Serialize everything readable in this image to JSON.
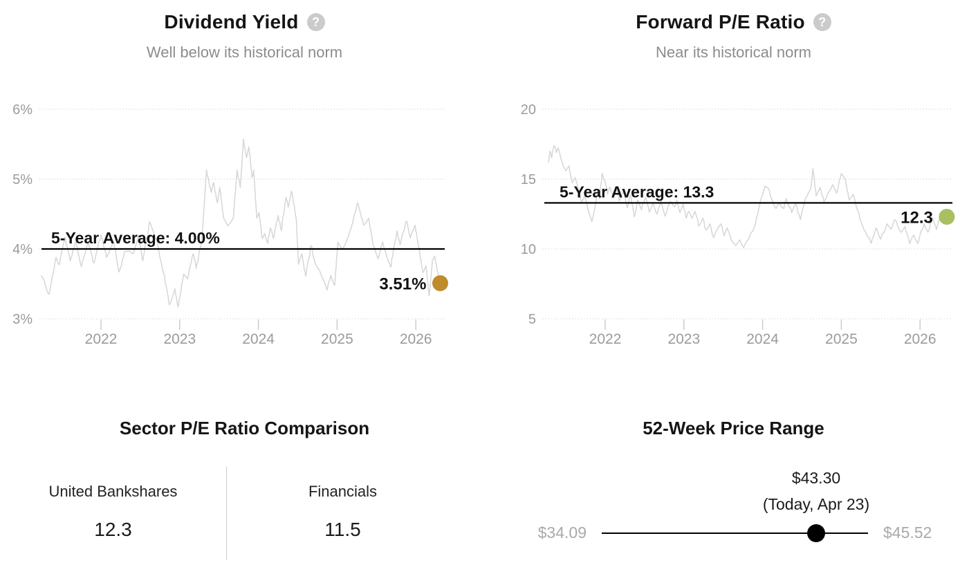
{
  "icons": {
    "help_glyph": "?"
  },
  "colors": {
    "title": "#151515",
    "subtitle": "#8c8c8c",
    "axis_text": "#9b9b9b",
    "grid": "#dcdcdc",
    "tick": "#c9c9c9",
    "series_line": "#d6d6d6",
    "average_line": "#000000",
    "gold_dot": "#bf8b2c",
    "green_dot": "#a8c05f",
    "range_label": "#a9a9a9",
    "slider": "#000000",
    "divider": "#cccccc"
  },
  "chart_data": [
    {
      "type": "line",
      "title": "Dividend Yield",
      "subtitle": "Well below its historical norm",
      "xlabel": "",
      "ylabel": "",
      "xlim": [
        2021.2,
        2026.45
      ],
      "ylim": [
        3,
        6
      ],
      "grid": "dotted-horizontal",
      "x_ticks": [
        2022,
        2023,
        2024,
        2025,
        2026
      ],
      "x_tick_labels": [
        "2022",
        "2023",
        "2024",
        "2025",
        "2026"
      ],
      "y_ticks": [
        3,
        4,
        5,
        6
      ],
      "y_tick_labels": [
        "3%",
        "4%",
        "5%",
        "6%"
      ],
      "average_value": 4.0,
      "average_label": "5-Year Average: 4.00%",
      "current_x": 2026.31,
      "current_value": 3.51,
      "current_label": "3.51%",
      "line_color": "#d6d6d6",
      "dot_color": "#bf8b2c",
      "series": [
        {
          "name": "Dividend Yield %",
          "points": [
            [
              2021.24,
              3.62
            ],
            [
              2021.3,
              3.46
            ],
            [
              2021.34,
              3.35
            ],
            [
              2021.43,
              3.88
            ],
            [
              2021.47,
              3.77
            ],
            [
              2021.54,
              4.17
            ],
            [
              2021.61,
              3.83
            ],
            [
              2021.68,
              4.12
            ],
            [
              2021.75,
              3.75
            ],
            [
              2021.84,
              4.09
            ],
            [
              2021.91,
              3.8
            ],
            [
              2022.0,
              4.2
            ],
            [
              2022.07,
              3.88
            ],
            [
              2022.16,
              4.12
            ],
            [
              2022.23,
              3.67
            ],
            [
              2022.3,
              3.96
            ],
            [
              2022.41,
              3.93
            ],
            [
              2022.48,
              4.2
            ],
            [
              2022.53,
              3.83
            ],
            [
              2022.62,
              4.39
            ],
            [
              2022.71,
              4.12
            ],
            [
              2022.76,
              3.83
            ],
            [
              2022.8,
              3.64
            ],
            [
              2022.87,
              3.2
            ],
            [
              2022.94,
              3.43
            ],
            [
              2022.98,
              3.17
            ],
            [
              2023.05,
              3.64
            ],
            [
              2023.1,
              3.57
            ],
            [
              2023.17,
              3.93
            ],
            [
              2023.21,
              3.72
            ],
            [
              2023.28,
              4.12
            ],
            [
              2023.31,
              4.6
            ],
            [
              2023.34,
              5.13
            ],
            [
              2023.4,
              4.81
            ],
            [
              2023.43,
              4.95
            ],
            [
              2023.48,
              4.66
            ],
            [
              2023.51,
              4.88
            ],
            [
              2023.56,
              4.44
            ],
            [
              2023.61,
              4.33
            ],
            [
              2023.68,
              4.44
            ],
            [
              2023.73,
              5.13
            ],
            [
              2023.77,
              4.88
            ],
            [
              2023.81,
              5.57
            ],
            [
              2023.85,
              5.31
            ],
            [
              2023.88,
              5.46
            ],
            [
              2023.92,
              5.02
            ],
            [
              2023.94,
              5.13
            ],
            [
              2023.98,
              4.44
            ],
            [
              2024.01,
              4.52
            ],
            [
              2024.05,
              4.15
            ],
            [
              2024.08,
              4.22
            ],
            [
              2024.12,
              4.08
            ],
            [
              2024.15,
              4.3
            ],
            [
              2024.19,
              4.15
            ],
            [
              2024.25,
              4.48
            ],
            [
              2024.29,
              4.26
            ],
            [
              2024.35,
              4.74
            ],
            [
              2024.38,
              4.6
            ],
            [
              2024.42,
              4.83
            ],
            [
              2024.44,
              4.72
            ],
            [
              2024.48,
              4.44
            ],
            [
              2024.51,
              3.78
            ],
            [
              2024.55,
              3.93
            ],
            [
              2024.6,
              3.61
            ],
            [
              2024.64,
              3.86
            ],
            [
              2024.67,
              4.05
            ],
            [
              2024.72,
              3.8
            ],
            [
              2024.78,
              3.68
            ],
            [
              2024.83,
              3.55
            ],
            [
              2024.87,
              3.41
            ],
            [
              2024.92,
              3.62
            ],
            [
              2024.97,
              3.48
            ],
            [
              2025.01,
              4.1
            ],
            [
              2025.07,
              4.0
            ],
            [
              2025.13,
              4.15
            ],
            [
              2025.19,
              4.35
            ],
            [
              2025.26,
              4.66
            ],
            [
              2025.34,
              4.34
            ],
            [
              2025.4,
              4.44
            ],
            [
              2025.46,
              4.05
            ],
            [
              2025.52,
              3.86
            ],
            [
              2025.58,
              4.1
            ],
            [
              2025.63,
              3.9
            ],
            [
              2025.68,
              3.74
            ],
            [
              2025.76,
              4.26
            ],
            [
              2025.8,
              4.06
            ],
            [
              2025.88,
              4.4
            ],
            [
              2025.93,
              4.16
            ],
            [
              2025.99,
              4.34
            ],
            [
              2026.04,
              4.0
            ],
            [
              2026.09,
              3.66
            ],
            [
              2026.13,
              3.76
            ],
            [
              2026.17,
              3.33
            ],
            [
              2026.18,
              3.45
            ],
            [
              2026.21,
              3.83
            ],
            [
              2026.24,
              3.9
            ],
            [
              2026.27,
              3.7
            ],
            [
              2026.31,
              3.51
            ]
          ]
        }
      ]
    },
    {
      "type": "line",
      "title": "Forward P/E Ratio",
      "subtitle": "Near its historical norm",
      "xlabel": "",
      "ylabel": "",
      "xlim": [
        2021.2,
        2026.45
      ],
      "ylim": [
        5,
        20
      ],
      "grid": "dotted-horizontal",
      "x_ticks": [
        2022,
        2023,
        2024,
        2025,
        2026
      ],
      "x_tick_labels": [
        "2022",
        "2023",
        "2024",
        "2025",
        "2026"
      ],
      "y_ticks": [
        5,
        10,
        15,
        20
      ],
      "y_tick_labels": [
        "5",
        "10",
        "15",
        "20"
      ],
      "average_value": 13.3,
      "average_label": "5-Year Average: 13.3",
      "current_x": 2026.34,
      "current_value": 12.3,
      "current_label": "12.3",
      "line_color": "#d6d6d6",
      "dot_color": "#a8c05f",
      "series": [
        {
          "name": "Forward P/E",
          "points": [
            [
              2021.28,
              16.2
            ],
            [
              2021.3,
              17.0
            ],
            [
              2021.32,
              16.5
            ],
            [
              2021.35,
              17.4
            ],
            [
              2021.38,
              16.9
            ],
            [
              2021.4,
              17.25
            ],
            [
              2021.44,
              16.4
            ],
            [
              2021.47,
              15.9
            ],
            [
              2021.5,
              15.6
            ],
            [
              2021.54,
              15.95
            ],
            [
              2021.58,
              14.75
            ],
            [
              2021.62,
              15.1
            ],
            [
              2021.66,
              14.15
            ],
            [
              2021.7,
              13.35
            ],
            [
              2021.74,
              13.8
            ],
            [
              2021.79,
              12.65
            ],
            [
              2021.83,
              11.95
            ],
            [
              2021.87,
              12.9
            ],
            [
              2021.9,
              14.1
            ],
            [
              2021.93,
              13.6
            ],
            [
              2021.96,
              15.4
            ],
            [
              2022.0,
              14.8
            ],
            [
              2022.03,
              13.9
            ],
            [
              2022.06,
              14.45
            ],
            [
              2022.1,
              13.6
            ],
            [
              2022.14,
              14.3
            ],
            [
              2022.18,
              13.45
            ],
            [
              2022.23,
              14.1
            ],
            [
              2022.28,
              12.95
            ],
            [
              2022.32,
              13.85
            ],
            [
              2022.37,
              12.3
            ],
            [
              2022.41,
              13.5
            ],
            [
              2022.46,
              12.8
            ],
            [
              2022.51,
              13.7
            ],
            [
              2022.56,
              12.65
            ],
            [
              2022.61,
              13.3
            ],
            [
              2022.66,
              12.5
            ],
            [
              2022.71,
              13.5
            ],
            [
              2022.76,
              12.35
            ],
            [
              2022.8,
              13.05
            ],
            [
              2022.83,
              13.4
            ],
            [
              2022.88,
              13.0
            ],
            [
              2022.91,
              13.5
            ],
            [
              2022.95,
              12.6
            ],
            [
              2022.99,
              13.2
            ],
            [
              2023.03,
              12.2
            ],
            [
              2023.06,
              12.7
            ],
            [
              2023.1,
              12.2
            ],
            [
              2023.14,
              12.7
            ],
            [
              2023.19,
              11.65
            ],
            [
              2023.24,
              12.2
            ],
            [
              2023.28,
              11.35
            ],
            [
              2023.33,
              11.8
            ],
            [
              2023.38,
              10.8
            ],
            [
              2023.42,
              11.35
            ],
            [
              2023.47,
              11.8
            ],
            [
              2023.51,
              10.95
            ],
            [
              2023.55,
              11.5
            ],
            [
              2023.6,
              10.65
            ],
            [
              2023.66,
              10.25
            ],
            [
              2023.71,
              10.65
            ],
            [
              2023.76,
              10.1
            ],
            [
              2023.81,
              10.65
            ],
            [
              2023.85,
              11.15
            ],
            [
              2023.9,
              11.65
            ],
            [
              2023.94,
              12.5
            ],
            [
              2023.98,
              13.6
            ],
            [
              2024.03,
              14.5
            ],
            [
              2024.08,
              14.3
            ],
            [
              2024.12,
              13.5
            ],
            [
              2024.17,
              12.9
            ],
            [
              2024.21,
              13.3
            ],
            [
              2024.27,
              12.9
            ],
            [
              2024.3,
              13.6
            ],
            [
              2024.37,
              12.6
            ],
            [
              2024.42,
              13.2
            ],
            [
              2024.48,
              12.1
            ],
            [
              2024.53,
              13.3
            ],
            [
              2024.58,
              14.0
            ],
            [
              2024.61,
              14.3
            ],
            [
              2024.64,
              15.75
            ],
            [
              2024.68,
              13.8
            ],
            [
              2024.73,
              14.4
            ],
            [
              2024.78,
              13.4
            ],
            [
              2024.83,
              14.0
            ],
            [
              2024.89,
              14.6
            ],
            [
              2024.94,
              14.0
            ],
            [
              2025.0,
              15.4
            ],
            [
              2025.05,
              15.0
            ],
            [
              2025.1,
              13.5
            ],
            [
              2025.15,
              13.9
            ],
            [
              2025.21,
              12.75
            ],
            [
              2025.26,
              11.8
            ],
            [
              2025.31,
              11.2
            ],
            [
              2025.38,
              10.4
            ],
            [
              2025.44,
              11.5
            ],
            [
              2025.5,
              10.7
            ],
            [
              2025.58,
              11.8
            ],
            [
              2025.63,
              11.4
            ],
            [
              2025.68,
              12.1
            ],
            [
              2025.76,
              11.2
            ],
            [
              2025.81,
              11.6
            ],
            [
              2025.87,
              10.4
            ],
            [
              2025.92,
              11.0
            ],
            [
              2025.97,
              10.4
            ],
            [
              2026.05,
              11.8
            ],
            [
              2026.1,
              11.2
            ],
            [
              2026.16,
              12.25
            ],
            [
              2026.21,
              11.4
            ],
            [
              2026.26,
              12.4
            ],
            [
              2026.31,
              12.15
            ],
            [
              2026.34,
              12.3
            ]
          ]
        }
      ]
    }
  ],
  "sector_comparison": {
    "title": "Sector P/E Ratio Comparison",
    "entity": {
      "name": "United Bankshares",
      "value": "12.3"
    },
    "sector": {
      "name": "Financials",
      "value": "11.5"
    }
  },
  "price_range": {
    "title": "52-Week Price Range",
    "low": 34.09,
    "high": 45.52,
    "current": 43.3,
    "low_label": "$34.09",
    "high_label": "$45.52",
    "current_label": "$43.30",
    "current_sublabel": "(Today, Apr 23)"
  }
}
